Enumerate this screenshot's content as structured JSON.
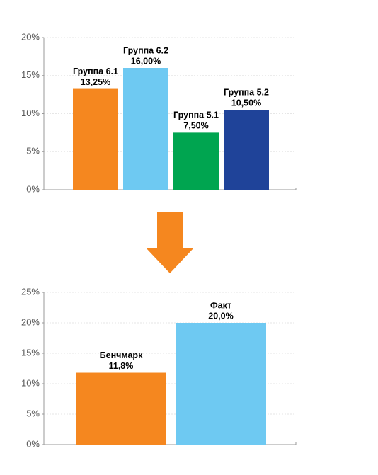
{
  "chart_data": [
    {
      "type": "bar",
      "categories": [
        "Группа 6.1",
        "Группа 6.2",
        "Группа 5.1",
        "Группа 5.2"
      ],
      "values": [
        13.25,
        16.0,
        7.5,
        10.5
      ],
      "value_labels": [
        "13,25%",
        "16,00%",
        "7,50%",
        "10,50%"
      ],
      "colors": [
        "#f5871f",
        "#6ec9f2",
        "#00a550",
        "#1f4399"
      ],
      "ylim": [
        0,
        20
      ],
      "yticks": [
        {
          "value": 0,
          "label": "0%"
        },
        {
          "value": 5,
          "label": "5%"
        },
        {
          "value": 10,
          "label": "10%"
        },
        {
          "value": 15,
          "label": "15%"
        },
        {
          "value": 20,
          "label": "20%"
        }
      ],
      "grid": true
    },
    {
      "type": "bar",
      "categories": [
        "Бенчмарк",
        "Факт"
      ],
      "values": [
        11.8,
        20.0
      ],
      "value_labels": [
        "11,8%",
        "20,0%"
      ],
      "colors": [
        "#f5871f",
        "#6ec9f2"
      ],
      "ylim": [
        0,
        25
      ],
      "yticks": [
        {
          "value": 0,
          "label": "0%"
        },
        {
          "value": 5,
          "label": "5%"
        },
        {
          "value": 10,
          "label": "10%"
        },
        {
          "value": 15,
          "label": "15%"
        },
        {
          "value": 20,
          "label": "20%"
        },
        {
          "value": 25,
          "label": "25%"
        }
      ],
      "grid": true
    }
  ]
}
